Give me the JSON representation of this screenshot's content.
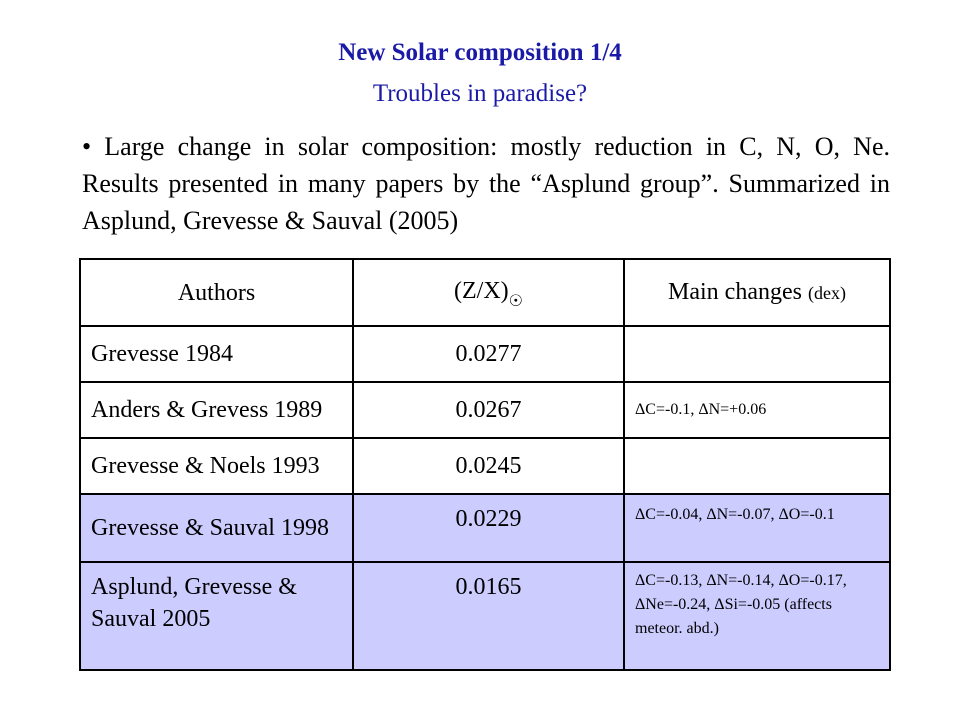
{
  "title": "New Solar composition 1/4",
  "subtitle": "Troubles in paradise?",
  "bullet": "• Large change in solar composition: mostly reduction in C, N, O, Ne. Results presented in many papers by the “Asplund group”. Summarized in Asplund, Grevesse & Sauval (2005)",
  "table": {
    "headers": {
      "authors": "Authors",
      "zx": "(Z/X)",
      "zx_sub": "☉",
      "changes": "Main changes",
      "changes_unit": "(dex)"
    },
    "rows": [
      {
        "author": "Grevesse 1984",
        "zx": "0.0277",
        "changes": ""
      },
      {
        "author": "Anders & Grevess 1989",
        "zx": "0.0267",
        "changes": "ΔC=-0.1, ΔN=+0.06"
      },
      {
        "author": "Grevesse & Noels 1993",
        "zx": "0.0245",
        "changes": ""
      },
      {
        "author": "Grevesse & Sauval 1998",
        "zx": "0.0229",
        "changes": "ΔC=-0.04, ΔN=-0.07, ΔO=-0.1"
      },
      {
        "author": "Asplund, Grevesse & Sauval 2005",
        "zx": "0.0165",
        "changes": "ΔC=-0.13, ΔN=-0.14, ΔO=-0.17, ΔNe=-0.24, ΔSi=-0.05 (affects meteor. abd.)"
      }
    ]
  },
  "colors": {
    "title": "#1a1aa6",
    "highlight_rows": "#ccccff"
  }
}
